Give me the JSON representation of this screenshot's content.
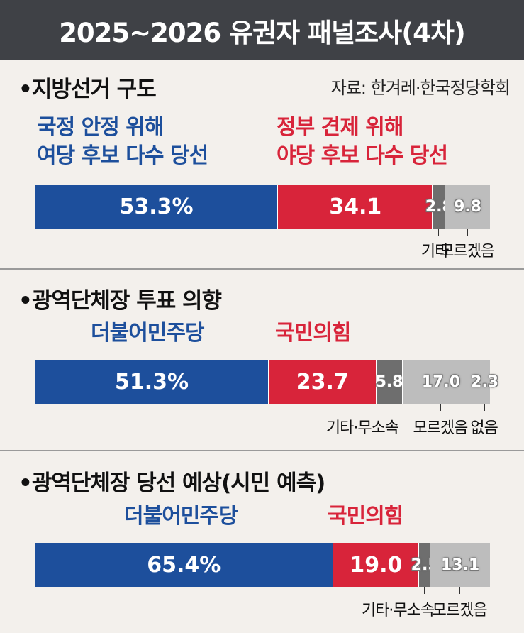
{
  "title": "2025~2026 유권자 패널조사(4차)",
  "source": "자료: 한겨레·한국정당학회",
  "colors": {
    "blue": "#1d4f9c",
    "red": "#d8243a",
    "dark_gray": "#6e6e6e",
    "light_gray": "#bdbdbd"
  },
  "chart_data": [
    {
      "type": "bar",
      "title": "•지방선거 구도",
      "top_labels": [
        "국정 안정 위해\n여당 후보 다수 당선",
        "정부 견제 위해\n야당 후보 다수 당선"
      ],
      "segments": [
        {
          "value": 53.3,
          "label": "53.3%",
          "color": "#1d4f9c"
        },
        {
          "value": 34.1,
          "label": "34.1",
          "color": "#d8243a"
        },
        {
          "value": 2.8,
          "label": "2.8",
          "name": "기타",
          "color": "#6e6e6e"
        },
        {
          "value": 9.8,
          "label": "9.8",
          "name": "모르겠음",
          "color": "#bdbdbd"
        }
      ]
    },
    {
      "type": "bar",
      "title": "•광역단체장 투표 의향",
      "top_labels": [
        "더불어민주당",
        "국민의힘"
      ],
      "segments": [
        {
          "value": 51.3,
          "label": "51.3%",
          "color": "#1d4f9c"
        },
        {
          "value": 23.7,
          "label": "23.7",
          "color": "#d8243a"
        },
        {
          "value": 5.8,
          "label": "5.8",
          "name": "기타·무소속",
          "color": "#6e6e6e"
        },
        {
          "value": 17.0,
          "label": "17.0",
          "name": "모르겠음",
          "color": "#bdbdbd"
        },
        {
          "value": 2.3,
          "label": "2.3",
          "name": "없음",
          "color": "#bdbdbd"
        }
      ]
    },
    {
      "type": "bar",
      "title": "•광역단체장 당선 예상(시민 예측)",
      "top_labels": [
        "더불어민주당",
        "국민의힘"
      ],
      "segments": [
        {
          "value": 65.4,
          "label": "65.4%",
          "color": "#1d4f9c"
        },
        {
          "value": 19.0,
          "label": "19.0",
          "color": "#d8243a"
        },
        {
          "value": 2.5,
          "label": "2.5",
          "name": "기타·무소속",
          "color": "#6e6e6e"
        },
        {
          "value": 13.1,
          "label": "13.1",
          "name": "모르겠음",
          "color": "#bdbdbd"
        }
      ]
    }
  ]
}
